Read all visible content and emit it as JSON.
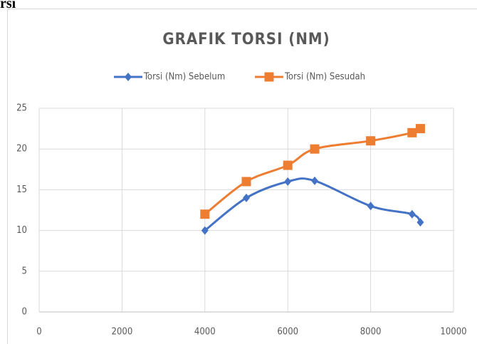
{
  "heading": "rsi",
  "chart_data": {
    "type": "scatter",
    "title": "GRAFIK TORSI (NM)",
    "x": [
      4000,
      5000,
      6000,
      6650,
      8000,
      9000,
      9200
    ],
    "series": [
      {
        "name": "Torsi (Nm) Sebelum",
        "color": "#4472c4",
        "marker": "diamond",
        "values": [
          10,
          14,
          16,
          16.1,
          13,
          12,
          11
        ]
      },
      {
        "name": "Torsi (Nm) Sesudah",
        "color": "#ed7d31",
        "marker": "square",
        "values": [
          12,
          16,
          18,
          20,
          21,
          22,
          22.5
        ]
      }
    ],
    "xlim": [
      0,
      10000
    ],
    "xticks": [
      0,
      2000,
      4000,
      6000,
      8000,
      10000
    ],
    "ylim": [
      0,
      25
    ],
    "yticks": [
      0,
      5,
      10,
      15,
      20,
      25
    ],
    "grid": true,
    "smooth": true,
    "legend": "top"
  }
}
